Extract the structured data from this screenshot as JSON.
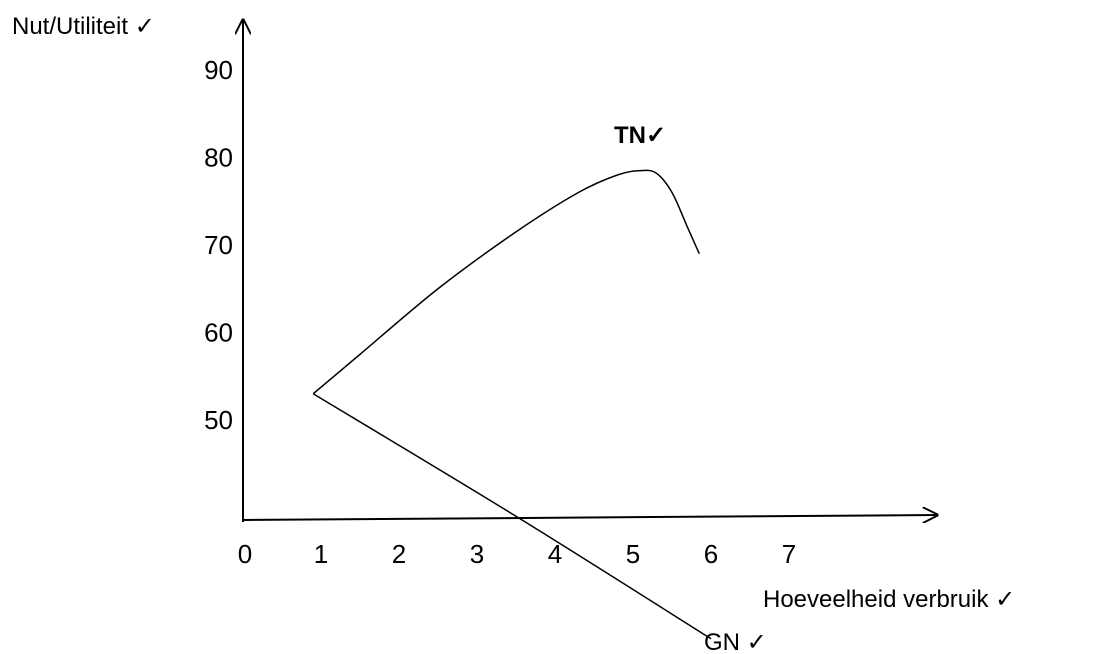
{
  "chart_data": {
    "type": "line",
    "ylabel": "Nut/Utiliteit ✓",
    "xlabel": "Hoeveelheid verbruik ✓",
    "x_ticks": [
      "0",
      "1",
      "2",
      "3",
      "4",
      "5",
      "6",
      "7"
    ],
    "y_ticks": [
      "50",
      "60",
      "70",
      "80",
      "90"
    ],
    "series": [
      {
        "name": "TN✓",
        "points": [
          [
            0.9,
            53
          ],
          [
            1.5,
            57.5
          ],
          [
            2.5,
            65
          ],
          [
            3.5,
            71.5
          ],
          [
            4.3,
            76
          ],
          [
            4.8,
            78
          ],
          [
            5.1,
            78.5
          ],
          [
            5.3,
            78.2
          ],
          [
            5.5,
            76
          ],
          [
            5.7,
            72
          ],
          [
            5.85,
            69
          ]
        ]
      },
      {
        "name": "GN ✓",
        "points": [
          [
            0.9,
            53
          ],
          [
            3.5,
            39
          ],
          [
            6.0,
            25
          ]
        ]
      }
    ]
  }
}
